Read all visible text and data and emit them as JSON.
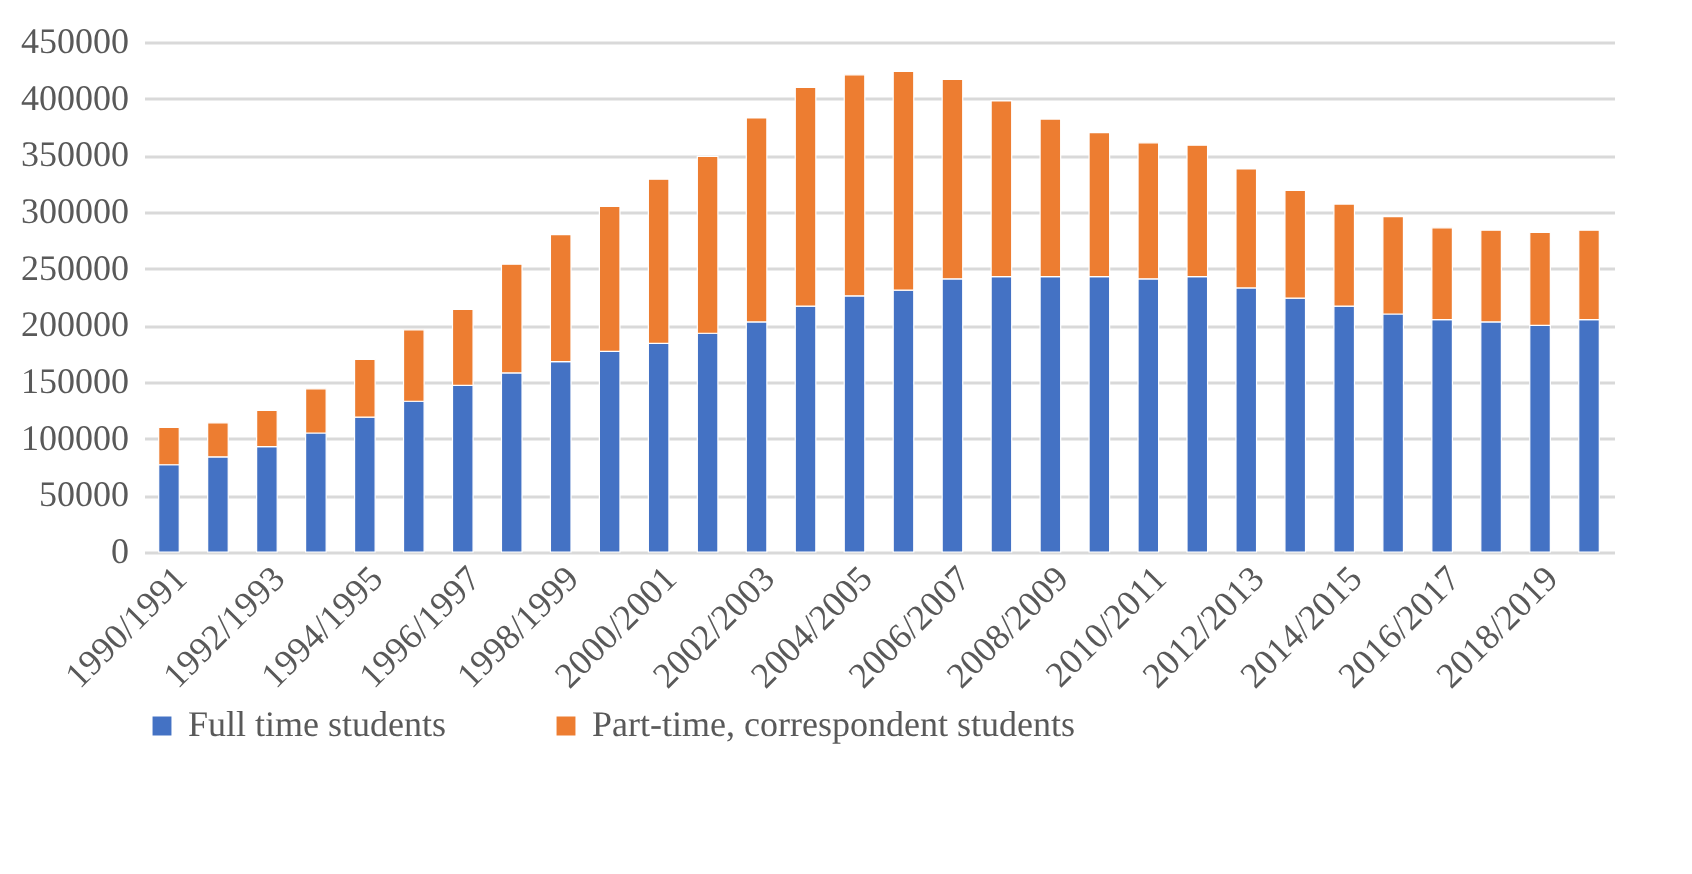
{
  "chart_data": {
    "type": "bar",
    "stacked": true,
    "categories": [
      "1990/1991",
      null,
      "1992/1993",
      null,
      "1994/1995",
      null,
      "1996/1997",
      null,
      "1998/1999",
      null,
      "2000/2001",
      null,
      "2002/2003",
      null,
      "2004/2005",
      null,
      "2006/2007",
      null,
      "2008/2009",
      null,
      "2010/2011",
      null,
      "2012/2013",
      null,
      "2014/2015",
      null,
      "2016/2017",
      null,
      "2018/2019",
      null
    ],
    "series": [
      {
        "name": "Full time students",
        "color": "#4472c4",
        "values": [
          77000,
          84000,
          93000,
          105000,
          119000,
          133000,
          147000,
          158000,
          168000,
          177000,
          184000,
          193000,
          203000,
          217000,
          226000,
          231000,
          241000,
          243000,
          243000,
          243000,
          241000,
          243000,
          233000,
          224000,
          217000,
          210000,
          205000,
          203000,
          200000,
          205000
        ]
      },
      {
        "name": "Part-time, correspondent students",
        "color": "#ed7d31",
        "values": [
          33000,
          30000,
          32000,
          39000,
          51000,
          63000,
          67000,
          96000,
          112000,
          128000,
          145000,
          156000,
          180000,
          193000,
          195000,
          193000,
          176000,
          155000,
          139000,
          127000,
          120000,
          116000,
          105000,
          95000,
          90000,
          86000,
          81000,
          81000,
          82000,
          79000
        ]
      }
    ],
    "ylim": [
      0,
      450000
    ],
    "yticks": [
      0,
      50000,
      100000,
      150000,
      200000,
      250000,
      300000,
      350000,
      400000,
      450000
    ],
    "grid": "y",
    "legend": "bottom"
  }
}
